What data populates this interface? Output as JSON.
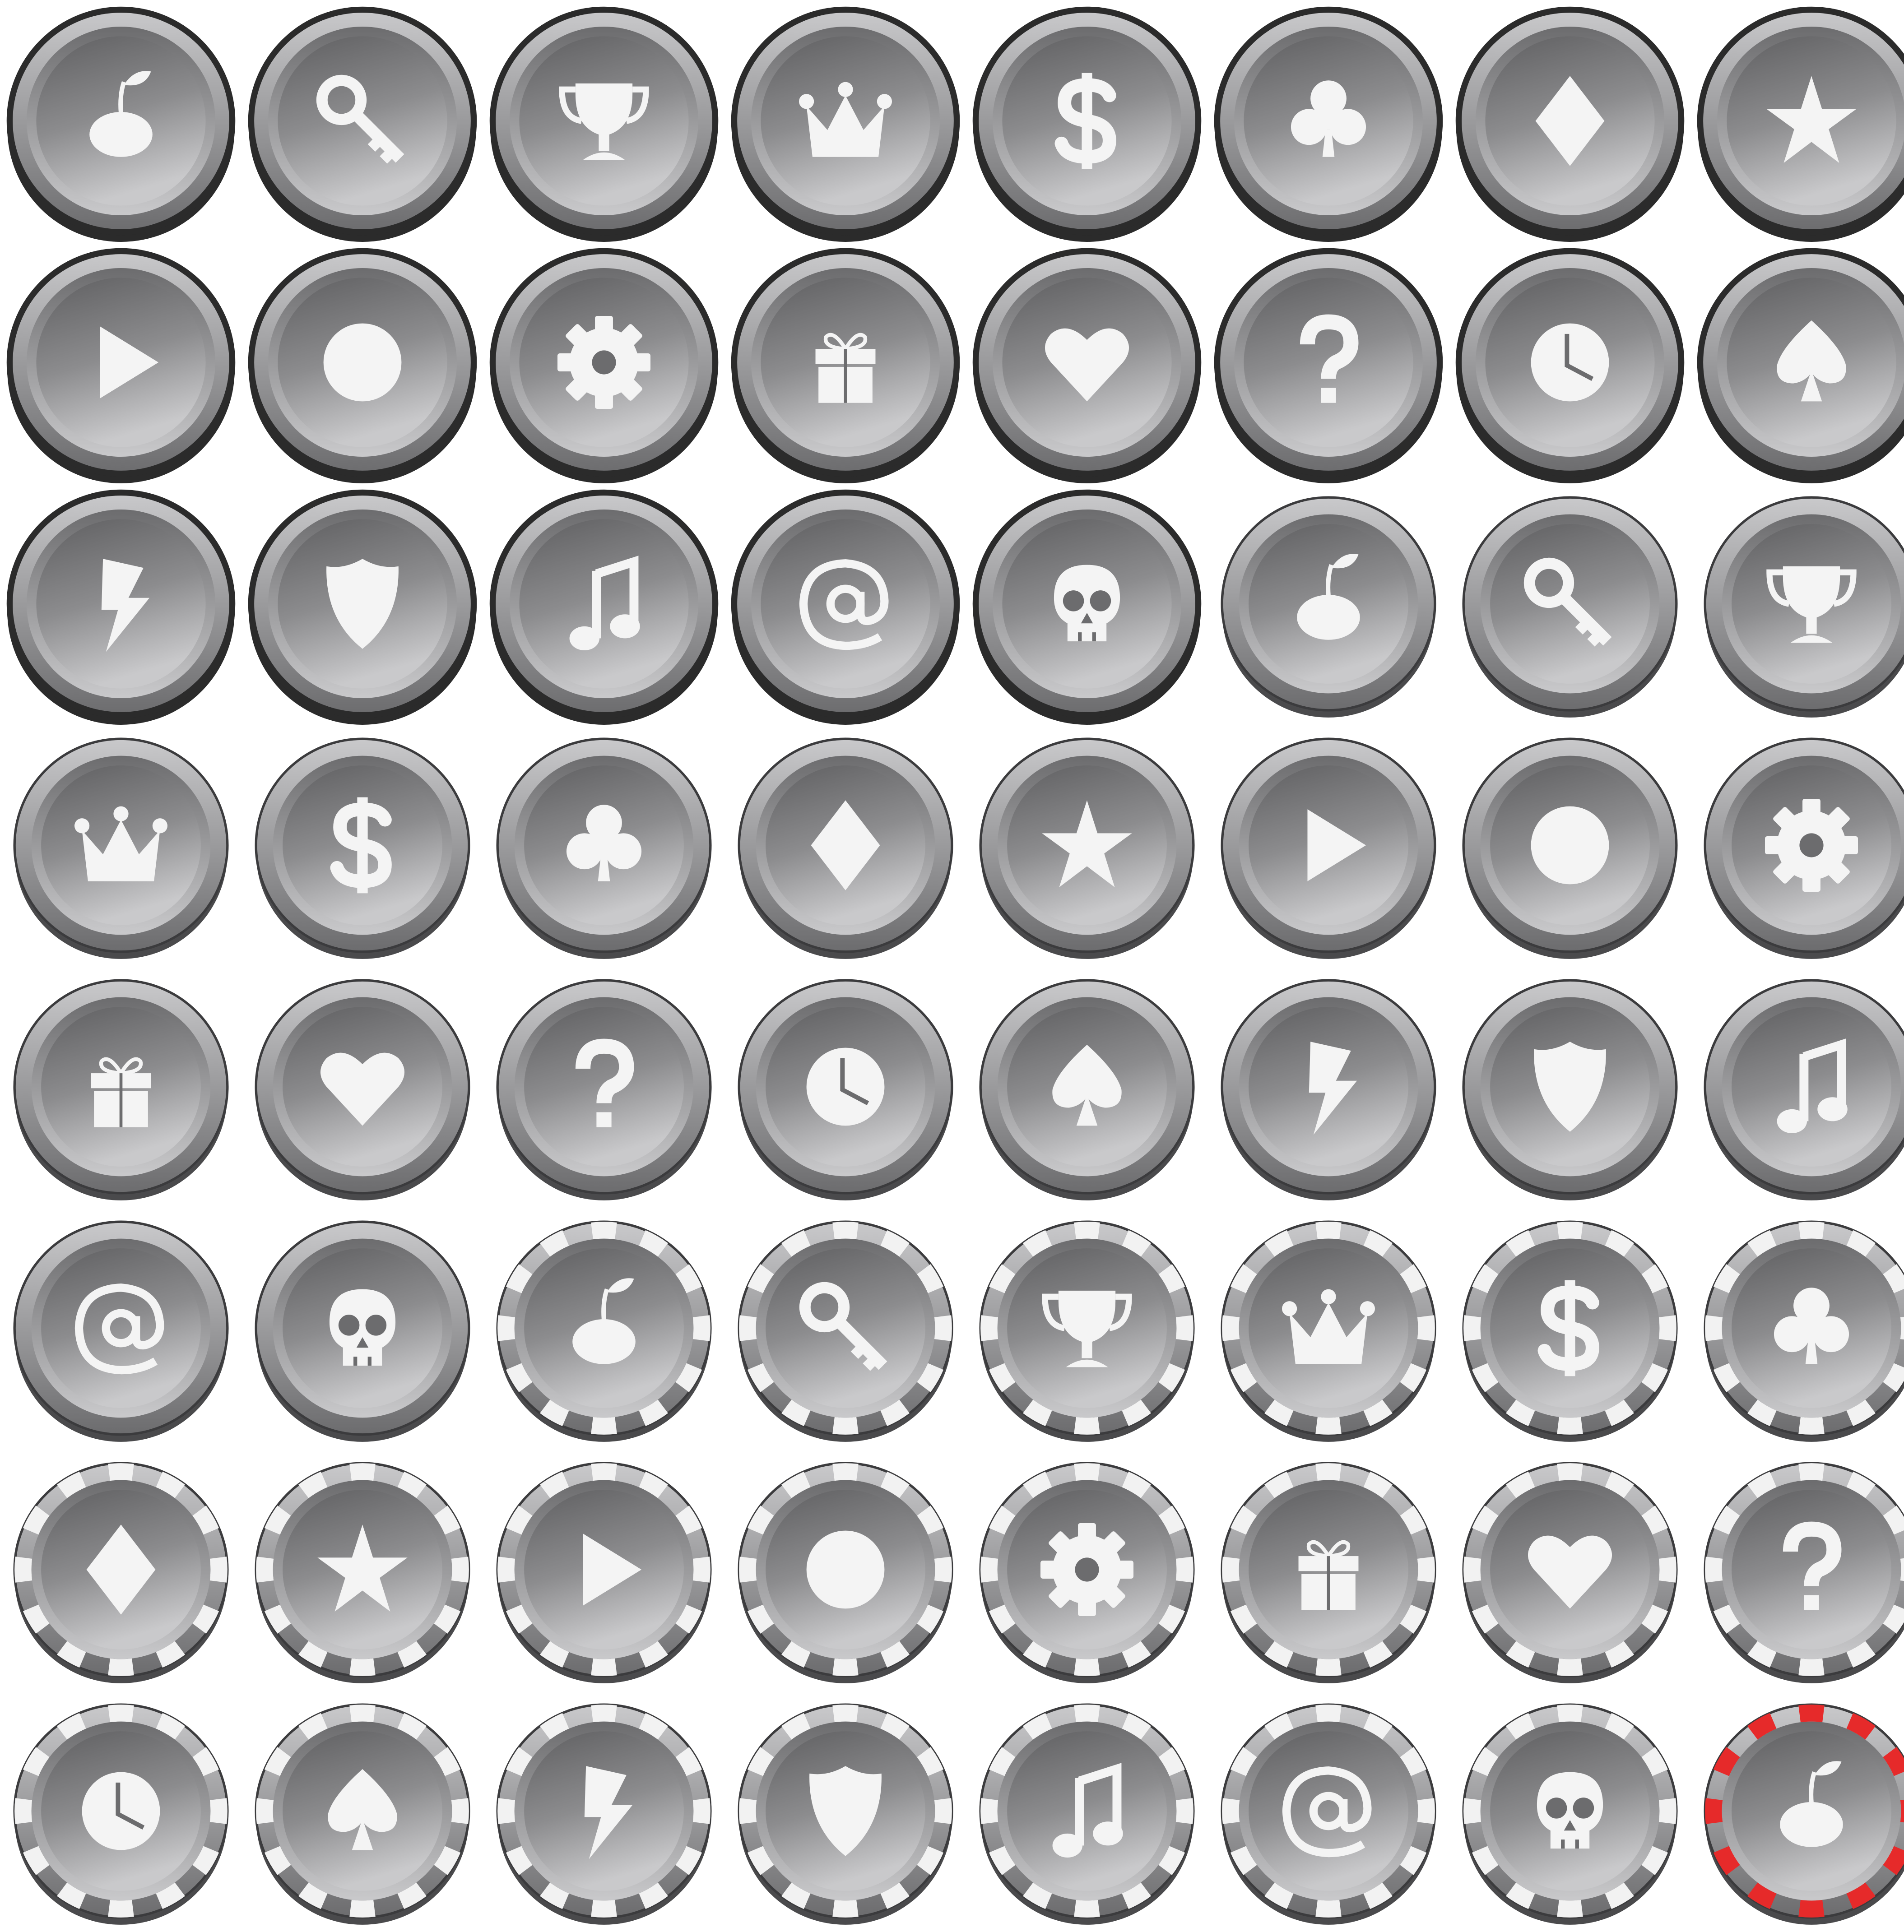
{
  "colors": {
    "background": "#ffffff",
    "symbol": "#f4f4f4",
    "face_dark": "#6c6c6e",
    "face_light": "#c9c9cb",
    "outline": "#2b2b2b",
    "chip_stripe": "#f2f2f2",
    "chip_stripe_highlight": "#e62a2a"
  },
  "grid": {
    "rows": 8,
    "columns": 8
  },
  "buttons": [
    {
      "icon": "cherry",
      "style": "thick-rim"
    },
    {
      "icon": "key",
      "style": "thick-rim"
    },
    {
      "icon": "trophy",
      "style": "thick-rim"
    },
    {
      "icon": "crown",
      "style": "thick-rim"
    },
    {
      "icon": "dollar",
      "style": "thick-rim"
    },
    {
      "icon": "club",
      "style": "thick-rim"
    },
    {
      "icon": "diamond",
      "style": "thick-rim"
    },
    {
      "icon": "star",
      "style": "thick-rim"
    },
    {
      "icon": "play",
      "style": "thick-rim"
    },
    {
      "icon": "circle",
      "style": "thick-rim"
    },
    {
      "icon": "gear",
      "style": "thick-rim"
    },
    {
      "icon": "gift",
      "style": "thick-rim"
    },
    {
      "icon": "heart",
      "style": "thick-rim"
    },
    {
      "icon": "question",
      "style": "thick-rim"
    },
    {
      "icon": "clock",
      "style": "thick-rim"
    },
    {
      "icon": "spade",
      "style": "thick-rim"
    },
    {
      "icon": "lightning",
      "style": "thick-rim"
    },
    {
      "icon": "shield",
      "style": "thick-rim"
    },
    {
      "icon": "music",
      "style": "thick-rim"
    },
    {
      "icon": "at",
      "style": "thick-rim"
    },
    {
      "icon": "skull",
      "style": "thick-rim"
    },
    {
      "icon": "cherry",
      "style": "coin"
    },
    {
      "icon": "key",
      "style": "coin"
    },
    {
      "icon": "trophy",
      "style": "coin"
    },
    {
      "icon": "crown",
      "style": "coin"
    },
    {
      "icon": "dollar",
      "style": "coin"
    },
    {
      "icon": "club",
      "style": "coin"
    },
    {
      "icon": "diamond",
      "style": "coin"
    },
    {
      "icon": "star",
      "style": "coin"
    },
    {
      "icon": "play",
      "style": "coin"
    },
    {
      "icon": "circle",
      "style": "coin"
    },
    {
      "icon": "gear",
      "style": "coin"
    },
    {
      "icon": "gift",
      "style": "coin"
    },
    {
      "icon": "heart",
      "style": "coin"
    },
    {
      "icon": "question",
      "style": "coin"
    },
    {
      "icon": "clock",
      "style": "coin"
    },
    {
      "icon": "spade",
      "style": "coin"
    },
    {
      "icon": "lightning",
      "style": "coin"
    },
    {
      "icon": "shield",
      "style": "coin"
    },
    {
      "icon": "music",
      "style": "coin"
    },
    {
      "icon": "at",
      "style": "coin"
    },
    {
      "icon": "skull",
      "style": "coin"
    },
    {
      "icon": "cherry",
      "style": "chip"
    },
    {
      "icon": "key",
      "style": "chip"
    },
    {
      "icon": "trophy",
      "style": "chip"
    },
    {
      "icon": "crown",
      "style": "chip"
    },
    {
      "icon": "dollar",
      "style": "chip"
    },
    {
      "icon": "club",
      "style": "chip"
    },
    {
      "icon": "diamond",
      "style": "chip"
    },
    {
      "icon": "star",
      "style": "chip"
    },
    {
      "icon": "play",
      "style": "chip"
    },
    {
      "icon": "circle",
      "style": "chip"
    },
    {
      "icon": "gear",
      "style": "chip"
    },
    {
      "icon": "gift",
      "style": "chip"
    },
    {
      "icon": "heart",
      "style": "chip"
    },
    {
      "icon": "question",
      "style": "chip"
    },
    {
      "icon": "clock",
      "style": "chip"
    },
    {
      "icon": "spade",
      "style": "chip"
    },
    {
      "icon": "lightning",
      "style": "chip"
    },
    {
      "icon": "shield",
      "style": "chip"
    },
    {
      "icon": "music",
      "style": "chip"
    },
    {
      "icon": "at",
      "style": "chip"
    },
    {
      "icon": "skull",
      "style": "chip"
    },
    {
      "icon": "cherry",
      "style": "chip-red"
    }
  ]
}
